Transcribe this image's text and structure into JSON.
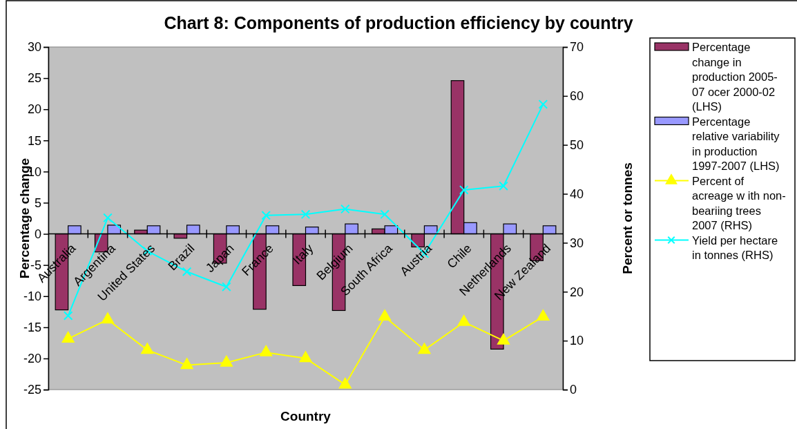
{
  "chart_data": {
    "type": "bar",
    "title": "Chart 8: Components of production efficiency by country",
    "xlabel": "Country",
    "ylabel": "Percentage change",
    "y2label": "Percent or tonnes",
    "categories": [
      "Australia",
      "Argentina",
      "United States",
      "Brazil",
      "Japan",
      "France",
      "Italy",
      "Belgium",
      "South Africa",
      "Austria",
      "Chile",
      "Netherlands",
      "New Zealand"
    ],
    "series": [
      {
        "name": "Percentage change in production 2005-07 ocer 2000-02 (LHS)",
        "color": "#993366",
        "values": [
          -12.2,
          -2.9,
          0.6,
          -0.7,
          -4.7,
          -12.1,
          -8.3,
          -12.3,
          0.8,
          -2.1,
          24.6,
          -18.5,
          -4.3
        ]
      },
      {
        "name": "Percentage relative variability in production 1997-2007 (LHS)",
        "color": "#9999ff",
        "values": [
          1.3,
          1.4,
          1.3,
          1.4,
          1.3,
          1.3,
          1.1,
          1.6,
          1.3,
          1.3,
          1.8,
          1.6,
          1.3
        ]
      },
      {
        "name": "Percent of acreage w ith non-beariing trees 2007 (RHS)",
        "color": "#ffff00",
        "type": "line",
        "axis": "y2",
        "marker": "triangle",
        "values": [
          10.4,
          14.3,
          8.1,
          5.0,
          5.5,
          7.6,
          6.4,
          1.0,
          14.9,
          8.1,
          13.8,
          10.0,
          14.9
        ]
      },
      {
        "name": "Yield per hectare in tonnes (RHS)",
        "color": "#00ffff",
        "type": "line",
        "axis": "y2",
        "marker": "cross",
        "values": [
          15.1,
          35.1,
          28.3,
          24.1,
          21.0,
          35.6,
          35.8,
          36.9,
          35.8,
          27.8,
          40.8,
          41.6,
          58.3
        ]
      }
    ],
    "ylim": [
      -25,
      30
    ],
    "yticks": [
      -25,
      -20,
      -15,
      -10,
      -5,
      0,
      5,
      10,
      15,
      20,
      25,
      30
    ],
    "y2lim": [
      0,
      70
    ],
    "y2ticks": [
      0,
      10,
      20,
      30,
      40,
      50,
      60,
      70
    ],
    "grid": false,
    "legend": "right"
  }
}
